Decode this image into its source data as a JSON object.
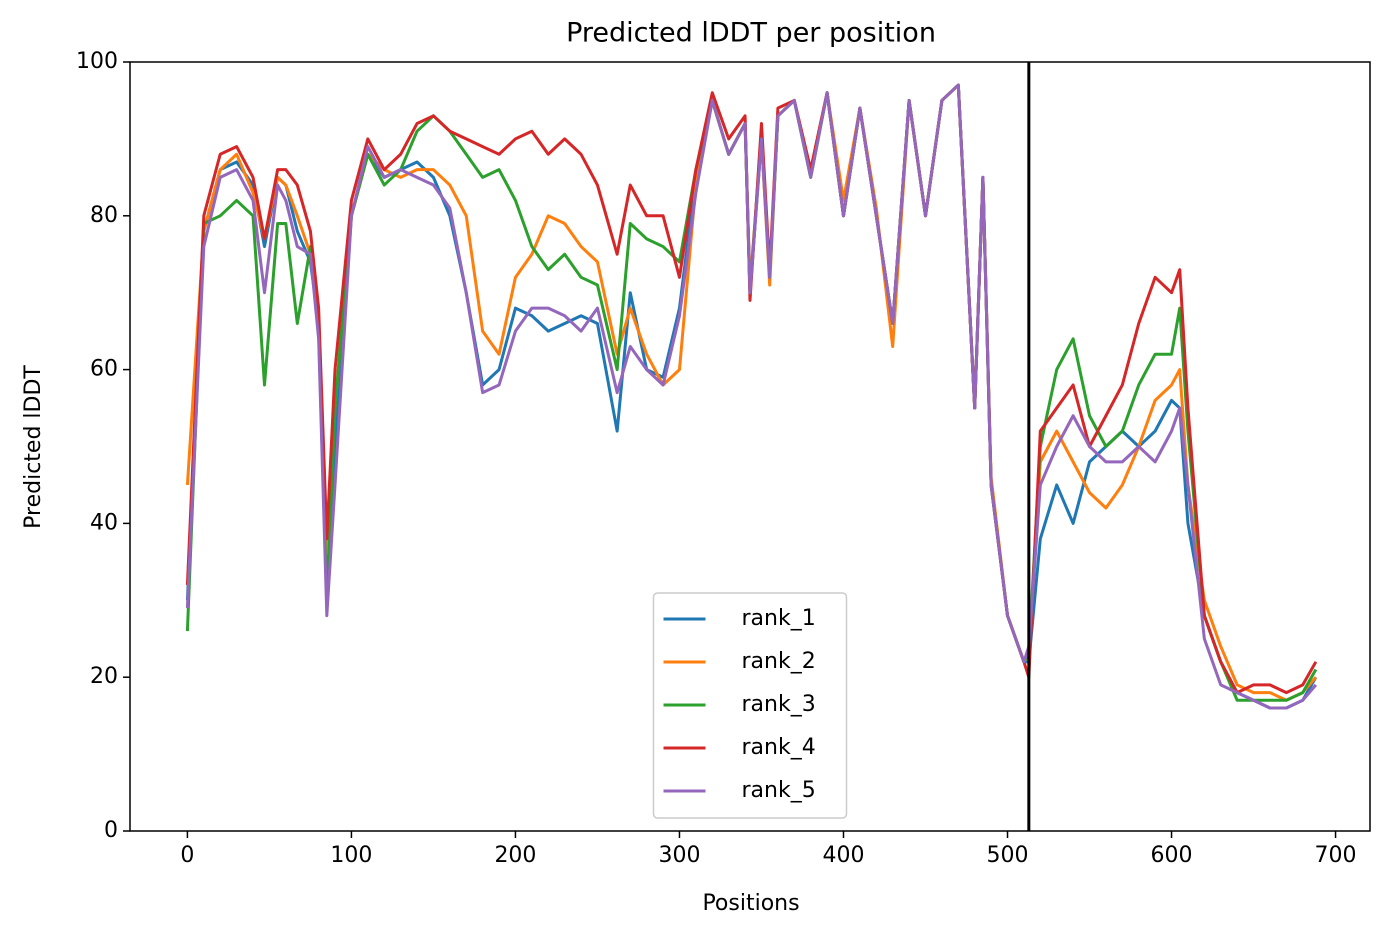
{
  "chart_data": {
    "type": "line",
    "title": "Predicted lDDT per position",
    "x_label": "Positions",
    "y_label": "Predicted lDDT",
    "xlim": [
      -35,
      721
    ],
    "ylim": [
      0,
      100
    ],
    "xticks": [
      0,
      100,
      200,
      300,
      400,
      500,
      600,
      700
    ],
    "yticks": [
      0,
      20,
      40,
      60,
      80,
      100
    ],
    "grid": false,
    "legend": "lower center",
    "vline": {
      "x": 513,
      "color": "#000000"
    },
    "x": [
      0,
      10,
      20,
      30,
      40,
      47,
      55,
      60,
      67,
      75,
      80,
      85,
      90,
      100,
      110,
      120,
      130,
      140,
      150,
      160,
      170,
      180,
      190,
      200,
      210,
      220,
      230,
      240,
      250,
      262,
      270,
      280,
      290,
      300,
      310,
      320,
      330,
      340,
      343,
      350,
      355,
      360,
      370,
      380,
      390,
      400,
      410,
      420,
      430,
      440,
      450,
      460,
      470,
      480,
      485,
      490,
      500,
      510,
      513,
      520,
      530,
      540,
      550,
      560,
      570,
      580,
      590,
      600,
      605,
      610,
      620,
      630,
      640,
      650,
      660,
      670,
      680,
      688
    ],
    "series": [
      {
        "name": "rank_1",
        "color": "#1f77b4",
        "values": [
          30,
          78,
          86,
          87,
          84,
          76,
          85,
          84,
          78,
          74,
          66,
          33,
          50,
          80,
          88,
          85,
          86,
          87,
          85,
          80,
          70,
          58,
          60,
          68,
          67,
          65,
          66,
          67,
          66,
          52,
          70,
          60,
          59,
          68,
          85,
          95,
          88,
          92,
          70,
          90,
          72,
          93,
          95,
          85,
          96,
          80,
          94,
          80,
          66,
          95,
          80,
          95,
          97,
          55,
          85,
          45,
          28,
          22,
          22,
          38,
          45,
          40,
          48,
          50,
          52,
          50,
          52,
          56,
          55,
          40,
          28,
          22,
          18,
          17,
          16,
          16,
          17,
          20
        ]
      },
      {
        "name": "rank_2",
        "color": "#ff7f0e",
        "values": [
          45,
          78,
          86,
          88,
          83,
          77,
          85,
          84,
          80,
          75,
          67,
          36,
          55,
          80,
          88,
          86,
          85,
          86,
          86,
          84,
          80,
          65,
          62,
          72,
          75,
          80,
          79,
          76,
          74,
          62,
          68,
          62,
          58,
          60,
          84,
          95,
          88,
          92,
          71,
          90,
          71,
          93,
          95,
          86,
          96,
          82,
          94,
          81,
          63,
          95,
          80,
          95,
          97,
          55,
          85,
          46,
          28,
          22,
          23,
          48,
          52,
          48,
          44,
          42,
          45,
          50,
          56,
          58,
          60,
          45,
          30,
          24,
          19,
          18,
          18,
          17,
          18,
          20
        ]
      },
      {
        "name": "rank_3",
        "color": "#2ca02c",
        "values": [
          26,
          79,
          80,
          82,
          80,
          58,
          79,
          79,
          66,
          76,
          65,
          30,
          55,
          80,
          88,
          84,
          86,
          91,
          93,
          91,
          88,
          85,
          86,
          82,
          76,
          73,
          75,
          72,
          71,
          60,
          79,
          77,
          76,
          74,
          86,
          95,
          88,
          92,
          70,
          91,
          72,
          93,
          95,
          85,
          96,
          80,
          94,
          80,
          66,
          95,
          80,
          95,
          97,
          55,
          85,
          45,
          28,
          22,
          23,
          50,
          60,
          64,
          54,
          50,
          52,
          58,
          62,
          62,
          68,
          52,
          28,
          22,
          17,
          17,
          17,
          17,
          18,
          21
        ]
      },
      {
        "name": "rank_4",
        "color": "#d62728",
        "values": [
          32,
          80,
          88,
          89,
          85,
          77,
          86,
          86,
          84,
          78,
          68,
          38,
          60,
          82,
          90,
          86,
          88,
          92,
          93,
          91,
          90,
          89,
          88,
          90,
          91,
          88,
          90,
          88,
          84,
          75,
          84,
          80,
          80,
          72,
          86,
          96,
          90,
          93,
          69,
          92,
          73,
          94,
          95,
          86,
          96,
          80,
          94,
          80,
          66,
          95,
          80,
          95,
          97,
          55,
          85,
          45,
          28,
          22,
          20,
          52,
          55,
          58,
          50,
          54,
          58,
          66,
          72,
          70,
          73,
          55,
          28,
          22,
          18,
          19,
          19,
          18,
          19,
          22
        ]
      },
      {
        "name": "rank_5",
        "color": "#9467bd",
        "values": [
          29,
          76,
          85,
          86,
          82,
          70,
          84,
          82,
          76,
          75,
          64,
          28,
          45,
          80,
          89,
          85,
          86,
          85,
          84,
          81,
          70,
          57,
          58,
          65,
          68,
          68,
          67,
          65,
          68,
          57,
          63,
          60,
          58,
          67,
          83,
          95,
          88,
          92,
          70,
          90,
          72,
          93,
          95,
          85,
          96,
          80,
          94,
          80,
          66,
          95,
          80,
          95,
          97,
          55,
          85,
          45,
          28,
          22,
          24,
          45,
          50,
          54,
          50,
          48,
          48,
          50,
          48,
          52,
          55,
          45,
          25,
          19,
          18,
          17,
          16,
          16,
          17,
          19
        ]
      }
    ]
  }
}
